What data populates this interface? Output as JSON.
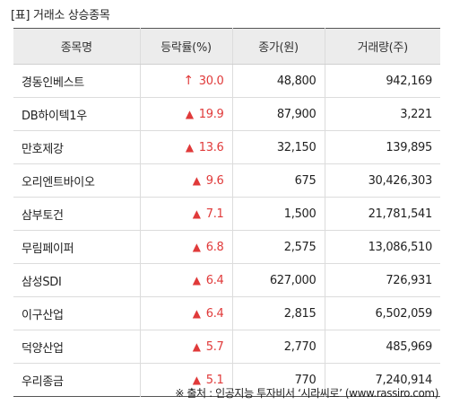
{
  "title": "[표] 거래소 상승종목",
  "columns": [
    "종목명",
    "등락률(%)",
    "종가(원)",
    "거래량(주)"
  ],
  "rows": [
    {
      "name": "경동인베스트",
      "arrow": "↑",
      "rate": "30.0",
      "price": "48,800",
      "volume": "942,169"
    },
    {
      "name": "DB하이텍1우",
      "arrow": "▲",
      "rate": "19.9",
      "price": "87,900",
      "volume": "3,221"
    },
    {
      "name": "만호제강",
      "arrow": "▲",
      "rate": "13.6",
      "price": "32,150",
      "volume": "139,895"
    },
    {
      "name": "오리엔트바이오",
      "arrow": "▲",
      "rate": "9.6",
      "price": "675",
      "volume": "30,426,303"
    },
    {
      "name": "삼부토건",
      "arrow": "▲",
      "rate": "7.1",
      "price": "1,500",
      "volume": "21,781,541"
    },
    {
      "name": "무림페이퍼",
      "arrow": "▲",
      "rate": "6.8",
      "price": "2,575",
      "volume": "13,086,510"
    },
    {
      "name": "삼성SDI",
      "arrow": "▲",
      "rate": "6.4",
      "price": "627,000",
      "volume": "726,931"
    },
    {
      "name": "이구산업",
      "arrow": "▲",
      "rate": "6.4",
      "price": "2,815",
      "volume": "6,502,059"
    },
    {
      "name": "덕양산업",
      "arrow": "▲",
      "rate": "5.7",
      "price": "2,770",
      "volume": "485,969"
    },
    {
      "name": "우리종금",
      "arrow": "▲",
      "rate": "5.1",
      "price": "770",
      "volume": "7,240,914"
    }
  ],
  "footer": "※ 출처 : 인공지능 투자비서 ‘시라씨로’ (www.rassiro.com)",
  "colors": {
    "rise": "#e03a3a",
    "header_bg": "#ececec"
  }
}
